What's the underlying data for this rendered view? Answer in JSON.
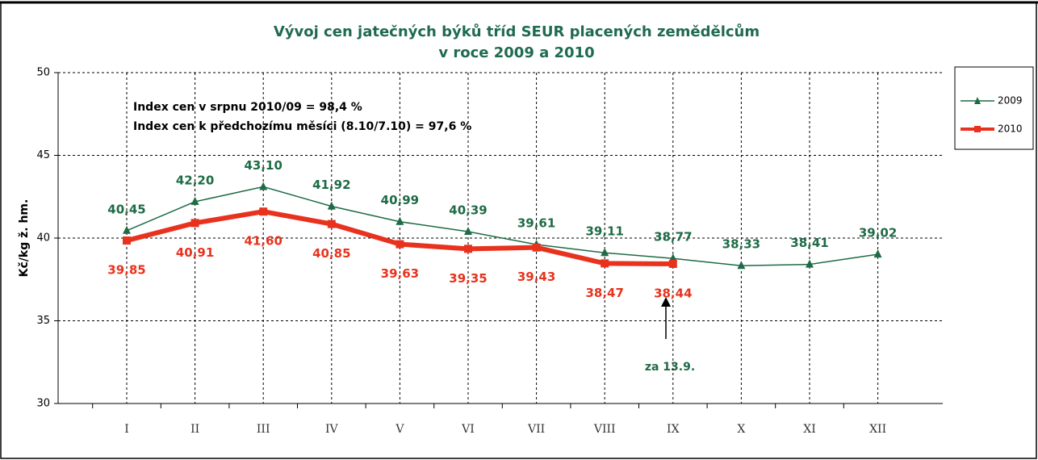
{
  "chart_data": {
    "type": "line",
    "title": "Vývoj cen jatečných býků tříd SEUR placených zemědělcům",
    "subtitle": "v roce 2009  a 2010",
    "y_label": "Kč/kg ž. hm.",
    "categories": [
      "I",
      "II",
      "III",
      "IV",
      "V",
      "VI",
      "VII",
      "VIII",
      "IX",
      "X",
      "XI",
      "XII"
    ],
    "ylim": [
      30,
      50
    ],
    "yticks": [
      30,
      35,
      40,
      45,
      50
    ],
    "grid": true,
    "legend": "right",
    "annotations": [
      "Index cen v srpnu 2010/09 = 98,4 %",
      "Index cen k předchozímu měsíci (8.10/7.10) = 97,6 %",
      "za 13.9."
    ],
    "series": [
      {
        "name": "2009",
        "color": "#1e6b45",
        "marker": "triangle",
        "values": [
          40.45,
          42.2,
          43.1,
          41.92,
          40.99,
          40.39,
          39.61,
          39.11,
          38.77,
          38.33,
          38.41,
          39.02
        ],
        "value_labels": [
          "40,45",
          "42,20",
          "43,10",
          "41,92",
          "40,99",
          "40,39",
          "39,61",
          "39,11",
          "38,77",
          "38,33",
          "38,41",
          "39,02"
        ]
      },
      {
        "name": "2010",
        "color": "#e8321e",
        "marker": "square",
        "values": [
          39.85,
          40.91,
          41.6,
          40.85,
          39.63,
          39.35,
          39.43,
          38.47,
          38.44,
          null,
          null,
          null
        ],
        "value_labels": [
          "39,85",
          "40,91",
          "41,60",
          "40,85",
          "39,63",
          "39,35",
          "39,43",
          "38,47",
          "38,44",
          null,
          null,
          null
        ]
      }
    ]
  }
}
